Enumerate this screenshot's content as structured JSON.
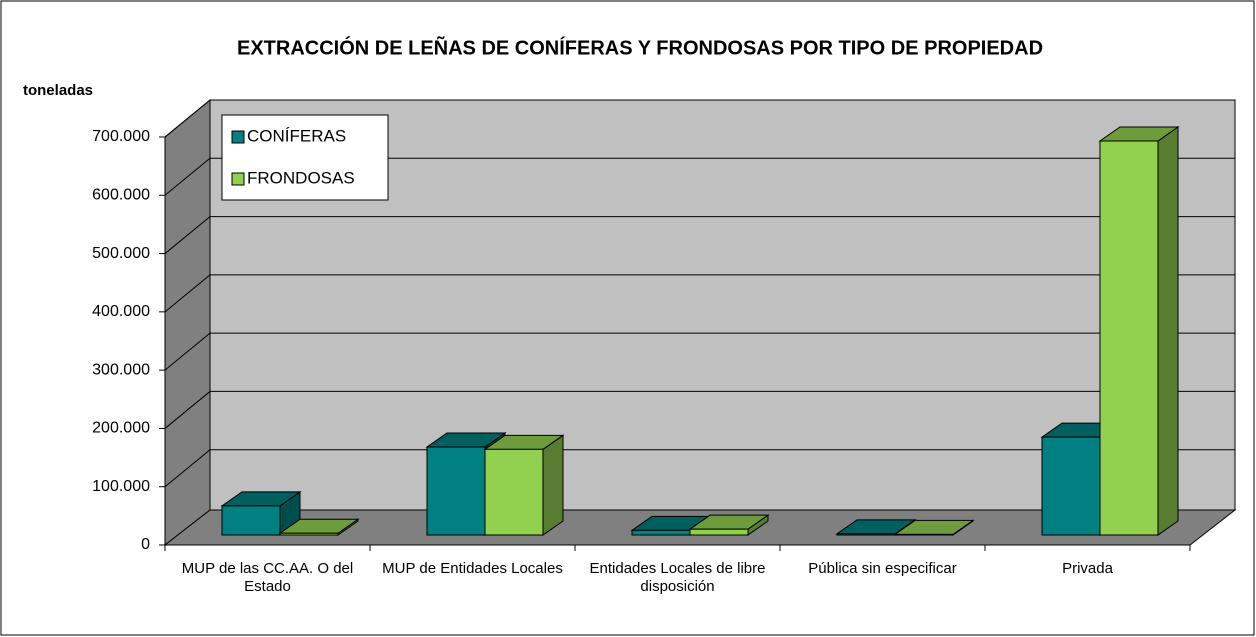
{
  "chart_data": {
    "type": "bar3d",
    "title": "EXTRACCIÓN DE LEÑAS DE CONÍFERAS Y FRONDOSAS POR TIPO DE PROPIEDAD",
    "y_label": "toneladas",
    "categories": [
      "MUP de las CC.AA. O del Estado",
      "MUP de Entidades Locales",
      "Entidades Locales de libre disposición",
      "Pública sin especificar",
      "Privada"
    ],
    "series": [
      {
        "name": "CONÍFERAS",
        "color": "#008080",
        "values": [
          50000,
          151000,
          8000,
          2000,
          168000
        ]
      },
      {
        "name": "FRONDOSAS",
        "color": "#92d050",
        "values": [
          3000,
          147000,
          10000,
          1000,
          676000
        ]
      }
    ],
    "ylim": [
      0,
      700000
    ],
    "yticks": [
      0,
      {
        "value": 100000,
        "label": "100.000"
      },
      {
        "value": 200000,
        "label": "200.000"
      },
      {
        "value": 300000,
        "label": "300.000"
      },
      {
        "value": 400000,
        "label": "400.000"
      },
      {
        "value": 500000,
        "label": "500.000"
      },
      {
        "value": 600000,
        "label": "600.000"
      },
      {
        "value": 700000,
        "label": "700.000"
      }
    ],
    "grid": true,
    "legend": "top-left"
  }
}
